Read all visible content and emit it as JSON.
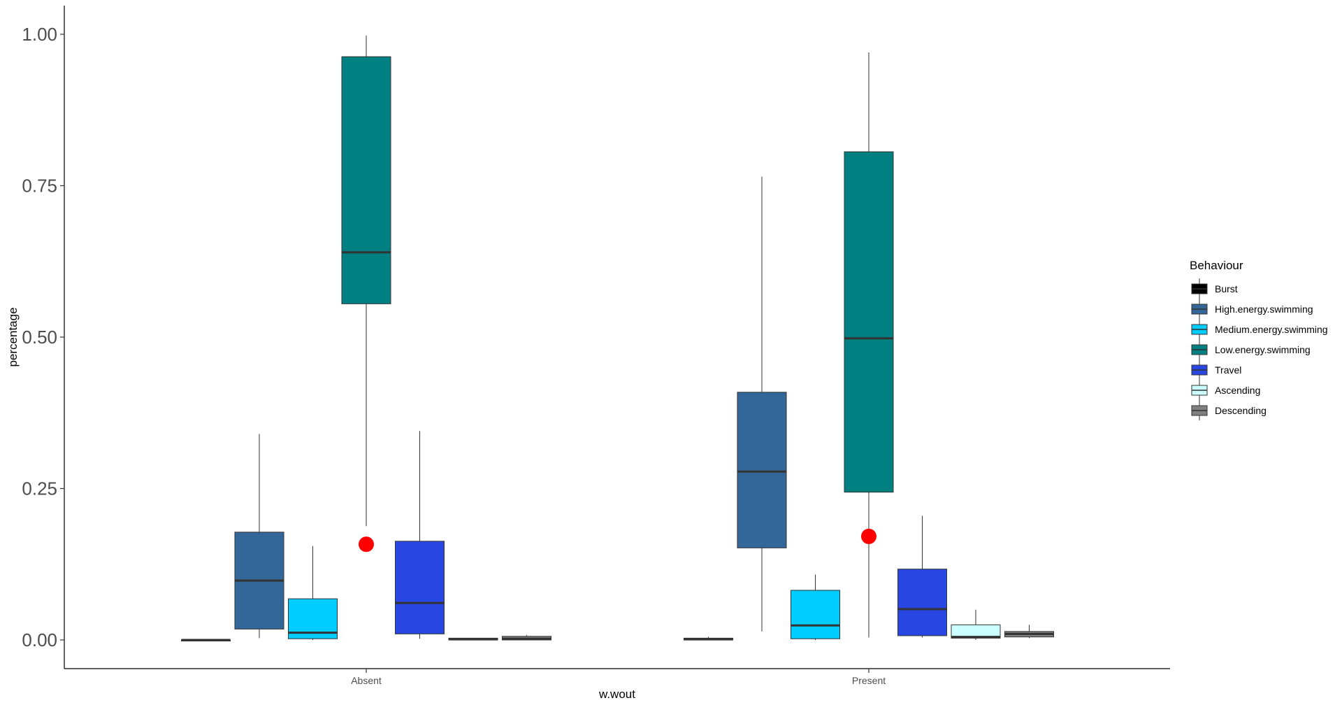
{
  "chart_data": {
    "type": "boxplot",
    "title": "",
    "xlabel": "w.wout",
    "ylabel": "percentage",
    "ylim": [
      -0.05,
      1.05
    ],
    "y_ticks": [
      {
        "value": 0.0,
        "label": "0.00"
      },
      {
        "value": 0.25,
        "label": "0.25"
      },
      {
        "value": 0.5,
        "label": "0.50"
      },
      {
        "value": 0.75,
        "label": "0.75"
      },
      {
        "value": 1.0,
        "label": "1.00"
      }
    ],
    "grid": false,
    "legend": {
      "title": "Behaviour",
      "position": "right"
    },
    "categories": [
      "Absent",
      "Present"
    ],
    "series": [
      {
        "name": "Burst",
        "color": "#000000",
        "boxes": [
          {
            "min": 0.0,
            "q1": 0.0,
            "median": 0.0,
            "q3": 0.0,
            "max": 0.0
          },
          {
            "min": 0.0,
            "q1": 0.0,
            "median": 0.001,
            "q3": 0.003,
            "max": 0.005
          }
        ]
      },
      {
        "name": "High.energy.swimming",
        "color": "#336699",
        "boxes": [
          {
            "min": 0.003,
            "q1": 0.018,
            "median": 0.098,
            "q3": 0.178,
            "max": 0.34
          },
          {
            "min": 0.014,
            "q1": 0.152,
            "median": 0.278,
            "q3": 0.409,
            "max": 0.765
          }
        ]
      },
      {
        "name": "Medium.energy.swimming",
        "color": "#00CCFF",
        "boxes": [
          {
            "min": 0.0,
            "q1": 0.002,
            "median": 0.012,
            "q3": 0.068,
            "max": 0.155
          },
          {
            "min": 0.0,
            "q1": 0.002,
            "median": 0.024,
            "q3": 0.082,
            "max": 0.108
          }
        ]
      },
      {
        "name": "Low.energy.swimming",
        "color": "#008080",
        "boxes": [
          {
            "min": 0.188,
            "q1": 0.555,
            "median": 0.64,
            "q3": 0.963,
            "max": 0.998,
            "outliers": [
              0.158
            ]
          },
          {
            "min": 0.004,
            "q1": 0.244,
            "median": 0.498,
            "q3": 0.806,
            "max": 0.97,
            "outliers": [
              0.171
            ]
          }
        ]
      },
      {
        "name": "Travel",
        "color": "#2847E2",
        "boxes": [
          {
            "min": 0.002,
            "q1": 0.01,
            "median": 0.061,
            "q3": 0.163,
            "max": 0.345
          },
          {
            "min": 0.004,
            "q1": 0.007,
            "median": 0.051,
            "q3": 0.117,
            "max": 0.205
          }
        ]
      },
      {
        "name": "Ascending",
        "color": "#CCFFFF",
        "boxes": [
          {
            "min": 0.0,
            "q1": 0.0,
            "median": 0.001,
            "q3": 0.003,
            "max": 0.003
          },
          {
            "min": 0.0,
            "q1": 0.003,
            "median": 0.005,
            "q3": 0.025,
            "max": 0.05
          }
        ]
      },
      {
        "name": "Descending",
        "color": "#808080",
        "boxes": [
          {
            "min": 0.0,
            "q1": 0.0,
            "median": 0.002,
            "q3": 0.006,
            "max": 0.008
          },
          {
            "min": 0.003,
            "q1": 0.005,
            "median": 0.01,
            "q3": 0.014,
            "max": 0.025
          }
        ]
      }
    ],
    "outlier_color": "#FF0000"
  }
}
